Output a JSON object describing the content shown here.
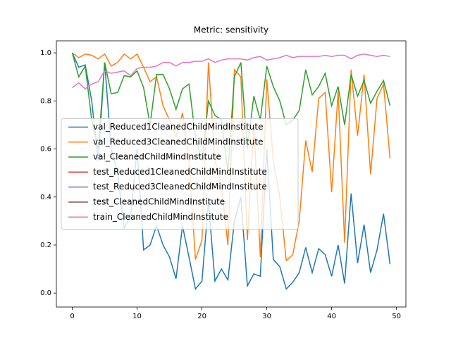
{
  "chart_data": {
    "type": "line",
    "title": "Metric: sensitivity",
    "x": [
      0,
      1,
      2,
      3,
      4,
      5,
      6,
      7,
      8,
      9,
      10,
      11,
      12,
      13,
      14,
      15,
      16,
      17,
      18,
      19,
      20,
      21,
      22,
      23,
      24,
      25,
      26,
      27,
      28,
      29,
      30,
      31,
      32,
      33,
      34,
      35,
      36,
      37,
      38,
      39,
      40,
      41,
      42,
      43,
      44,
      45,
      46,
      47,
      48,
      49
    ],
    "series": [
      {
        "name": "val_Reduced1CleanedChildMindInstitute",
        "color": "#1f77b4",
        "values": [
          1.0,
          0.94,
          0.95,
          0.8,
          0.55,
          0.96,
          0.6,
          0.5,
          0.27,
          0.32,
          0.6,
          0.18,
          0.2,
          0.28,
          0.2,
          0.15,
          0.06,
          0.28,
          0.15,
          0.017,
          0.05,
          0.38,
          0.05,
          0.1,
          0.055,
          0.3,
          0.4,
          0.03,
          0.08,
          0.07,
          0.6,
          0.14,
          0.11,
          0.017,
          0.045,
          0.085,
          0.19,
          0.085,
          0.185,
          0.16,
          0.07,
          0.2,
          0.04,
          0.415,
          0.125,
          0.285,
          0.085,
          0.18,
          0.33,
          0.12
        ]
      },
      {
        "name": "val_Reduced3CleanedChildMindInstitute",
        "color": "#ff7f0e",
        "values": [
          1.0,
          0.98,
          0.995,
          0.99,
          0.975,
          0.995,
          0.945,
          0.96,
          0.995,
          0.975,
          0.995,
          0.94,
          0.88,
          0.9,
          0.78,
          0.72,
          0.65,
          0.75,
          0.55,
          0.14,
          0.22,
          0.96,
          0.55,
          0.45,
          0.2,
          0.93,
          0.9,
          0.22,
          0.7,
          0.15,
          0.89,
          0.55,
          0.4,
          0.135,
          0.16,
          0.3,
          0.635,
          0.505,
          0.81,
          0.835,
          0.42,
          0.84,
          0.21,
          0.93,
          0.655,
          0.91,
          0.495,
          0.81,
          0.87,
          0.56
        ]
      },
      {
        "name": "val_CleanedChildMindInstitute",
        "color": "#2ca02c",
        "values": [
          1.0,
          0.9,
          0.945,
          0.72,
          0.6,
          0.96,
          0.83,
          0.835,
          0.905,
          0.9,
          0.925,
          0.855,
          0.7,
          0.91,
          0.91,
          0.85,
          0.765,
          0.85,
          0.87,
          0.65,
          0.55,
          0.8,
          0.74,
          0.72,
          0.5,
          0.9,
          0.96,
          0.6,
          0.82,
          0.72,
          0.945,
          0.86,
          0.8,
          0.7,
          0.72,
          0.76,
          0.93,
          0.825,
          0.86,
          0.915,
          0.78,
          0.86,
          0.7,
          0.91,
          0.82,
          0.885,
          0.79,
          0.84,
          0.885,
          0.78
        ]
      },
      {
        "name": "test_Reduced1CleanedChildMindInstitute",
        "color": "#d62728",
        "values": [
          null,
          null,
          null,
          null,
          null,
          null,
          null,
          null,
          null,
          null,
          null,
          null,
          null,
          null,
          null,
          null,
          null,
          null,
          null,
          null,
          null,
          null,
          null,
          null,
          null,
          null,
          null,
          null,
          null,
          null,
          null,
          null,
          null,
          null,
          null,
          null,
          null,
          null,
          null,
          null,
          null,
          null,
          null,
          null,
          null,
          null,
          null,
          null,
          null,
          null
        ]
      },
      {
        "name": "test_Reduced3CleanedChildMindInstitute",
        "color": "#9467bd",
        "values": [
          null,
          null,
          null,
          null,
          null,
          null,
          null,
          null,
          null,
          null,
          null,
          null,
          null,
          null,
          null,
          null,
          null,
          null,
          null,
          null,
          null,
          null,
          null,
          null,
          null,
          null,
          null,
          null,
          null,
          null,
          null,
          null,
          null,
          null,
          null,
          null,
          null,
          null,
          null,
          null,
          null,
          null,
          null,
          null,
          null,
          null,
          null,
          null,
          null,
          null
        ]
      },
      {
        "name": "test_CleanedChildMindInstitute",
        "color": "#8c564b",
        "values": [
          null,
          null,
          null,
          null,
          null,
          null,
          null,
          null,
          null,
          null,
          null,
          null,
          null,
          null,
          null,
          null,
          null,
          null,
          null,
          null,
          null,
          null,
          null,
          null,
          null,
          null,
          null,
          null,
          null,
          null,
          null,
          null,
          null,
          null,
          null,
          null,
          null,
          null,
          null,
          null,
          null,
          null,
          null,
          null,
          null,
          null,
          null,
          null,
          null,
          null
        ]
      },
      {
        "name": "train_CleanedChildMindInstitute",
        "color": "#e377c2",
        "values": [
          0.855,
          0.875,
          0.85,
          0.87,
          0.88,
          0.925,
          0.915,
          0.92,
          0.925,
          0.905,
          0.935,
          0.94,
          0.94,
          0.945,
          0.96,
          0.96,
          0.945,
          0.96,
          0.96,
          0.965,
          0.965,
          0.975,
          0.96,
          0.97,
          0.975,
          0.975,
          0.975,
          0.97,
          0.98,
          0.985,
          0.97,
          0.975,
          0.98,
          0.99,
          0.98,
          0.985,
          0.985,
          0.985,
          0.985,
          0.99,
          0.985,
          0.99,
          0.99,
          0.975,
          0.99,
          0.995,
          0.99,
          0.985,
          0.99,
          0.985
        ]
      }
    ],
    "xlim": [
      -2.45,
      51.45
    ],
    "xticks": [
      0,
      10,
      20,
      30,
      40,
      50
    ],
    "ylim": [
      -0.058,
      1.05
    ],
    "yticks": [
      {
        "value": 0,
        "label": "0.0"
      },
      {
        "value": 0.2,
        "label": "0.2"
      },
      {
        "value": 0.4,
        "label": "0.4"
      },
      {
        "value": 0.6,
        "label": "0.6"
      },
      {
        "value": 0.8,
        "label": "0.8"
      },
      {
        "value": 1,
        "label": "1.0"
      }
    ],
    "legend": "center left",
    "grid": false
  }
}
